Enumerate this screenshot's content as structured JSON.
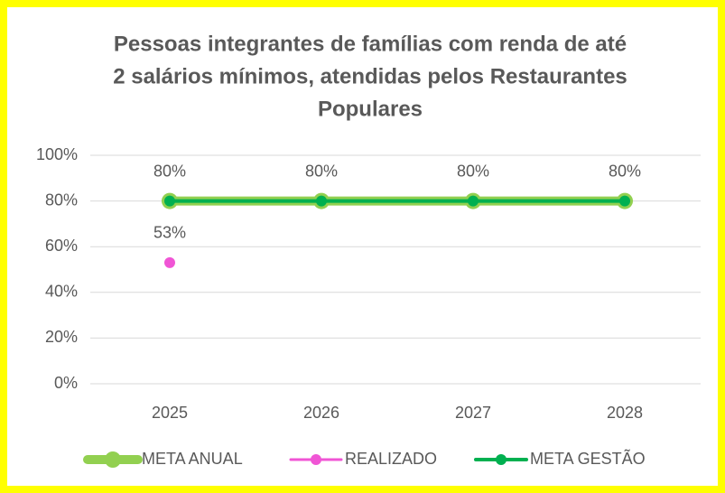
{
  "chart_data": {
    "type": "line",
    "title": [
      "Pessoas integrantes de famílias com renda de até",
      "2 salários mínimos, atendidas pelos Restaurantes",
      "Populares"
    ],
    "categories": [
      "2025",
      "2026",
      "2027",
      "2028"
    ],
    "series": [
      {
        "name": "META ANUAL",
        "color": "#92d050",
        "values": [
          80,
          80,
          80,
          80
        ],
        "value_labels": [
          "80%",
          "80%",
          "80%",
          "80%"
        ]
      },
      {
        "name": "REALIZADO",
        "color": "#f055d5",
        "values": [
          53,
          null,
          null,
          null
        ],
        "value_labels": [
          "53%",
          null,
          null,
          null
        ]
      },
      {
        "name": "META GESTÃO",
        "color": "#00b050",
        "values": [
          80,
          80,
          80,
          80
        ]
      }
    ],
    "ylim": [
      0,
      100
    ],
    "yticks": [
      {
        "value": 0,
        "label": "0%"
      },
      {
        "value": 20,
        "label": "20%"
      },
      {
        "value": 40,
        "label": "40%"
      },
      {
        "value": 60,
        "label": "60%"
      },
      {
        "value": 80,
        "label": "80%"
      },
      {
        "value": 100,
        "label": "100%"
      }
    ],
    "grid": true,
    "legend": "bottom"
  }
}
